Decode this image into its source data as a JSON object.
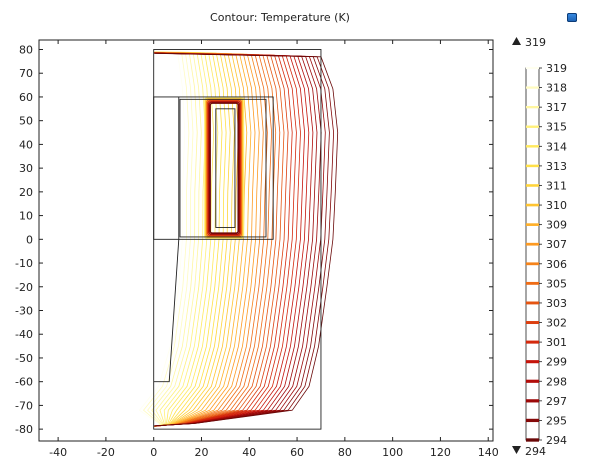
{
  "chart_data": {
    "type": "contour",
    "title": "Contour: Temperature (K)",
    "xlim": [
      -48,
      142
    ],
    "ylim": [
      -85,
      84
    ],
    "x_ticks": [
      -40,
      -20,
      0,
      20,
      40,
      60,
      80,
      100,
      120,
      140
    ],
    "y_ticks": [
      80,
      70,
      60,
      50,
      40,
      30,
      20,
      10,
      0,
      -10,
      -20,
      -30,
      -40,
      -50,
      -60,
      -70,
      -80
    ],
    "colorbar": {
      "max_label": "319",
      "min_label": "294",
      "levels": [
        {
          "value": 319,
          "color": "#fffff0"
        },
        {
          "value": 318,
          "color": "#fffbc0"
        },
        {
          "value": 317,
          "color": "#fff6a0"
        },
        {
          "value": 315,
          "color": "#fff07a"
        },
        {
          "value": 314,
          "color": "#ffe95e"
        },
        {
          "value": 313,
          "color": "#ffe048"
        },
        {
          "value": 311,
          "color": "#ffd43a"
        },
        {
          "value": 310,
          "color": "#ffc431"
        },
        {
          "value": 309,
          "color": "#ffb02a"
        },
        {
          "value": 307,
          "color": "#fd9a22"
        },
        {
          "value": 306,
          "color": "#f5831b"
        },
        {
          "value": 305,
          "color": "#ef6c16"
        },
        {
          "value": 303,
          "color": "#e55512"
        },
        {
          "value": 302,
          "color": "#dc3f10"
        },
        {
          "value": 301,
          "color": "#d4290d"
        },
        {
          "value": 299,
          "color": "#c5150b"
        },
        {
          "value": 298,
          "color": "#b20d0a"
        },
        {
          "value": 297,
          "color": "#9c0909"
        },
        {
          "value": 295,
          "color": "#840808"
        },
        {
          "value": 294,
          "color": "#6a0808"
        }
      ]
    },
    "grid": false
  }
}
